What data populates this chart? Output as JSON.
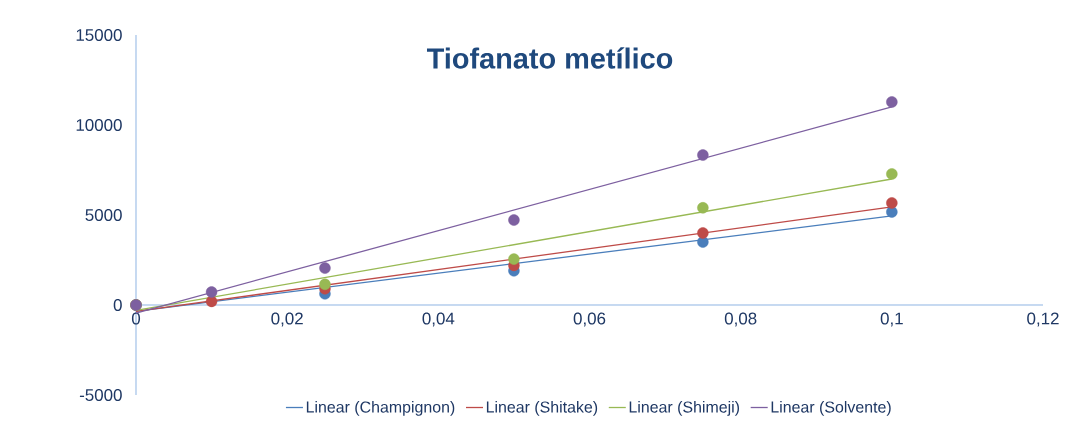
{
  "chart_data": {
    "type": "scatter",
    "title": "Tiofanato metílico",
    "xlim": [
      0,
      0.12
    ],
    "ylim": [
      -5000,
      15000
    ],
    "xticks": [
      0,
      {
        "value": 0.02,
        "label": "0,02"
      },
      {
        "value": 0.04,
        "label": "0,04"
      },
      {
        "value": 0.06,
        "label": "0,06"
      },
      {
        "value": 0.08,
        "label": "0,08"
      },
      {
        "value": 0.1,
        "label": "0,1"
      },
      {
        "value": 0.12,
        "label": "0,12"
      }
    ],
    "yticks": [
      -5000,
      0,
      5000,
      10000,
      15000
    ],
    "grid": false,
    "legend": "bottom",
    "series": [
      {
        "marker": "circle",
        "color": "#4a7ebb",
        "x": [
          0,
          0.01,
          0.025,
          0.05,
          0.075,
          0.1
        ],
        "values": [
          0,
          null,
          620,
          1900,
          3500,
          5170
        ]
      },
      {
        "marker": "circle",
        "color": "#be4b48",
        "x": [
          0,
          0.01,
          0.025,
          0.05,
          0.075,
          0.1
        ],
        "values": [
          0,
          200,
          900,
          2200,
          4000,
          5670
        ]
      },
      {
        "marker": "circle",
        "color": "#98b954",
        "x": [
          0,
          0.01,
          0.025,
          0.05,
          0.075,
          0.1
        ],
        "values": [
          0,
          null,
          1150,
          2550,
          5400,
          7280
        ]
      },
      {
        "marker": "circle",
        "color": "#7d60a0",
        "x": [
          0,
          0.01,
          0.025,
          0.05,
          0.075,
          0.1
        ],
        "values": [
          0,
          720,
          2050,
          4720,
          8330,
          11280
        ]
      },
      {
        "type": "line",
        "marker": "none",
        "name": "Linear (Champignon)",
        "color": "#4a7ebb",
        "x": [
          0,
          0.1
        ],
        "values": [
          -350,
          4950
        ]
      },
      {
        "type": "line",
        "marker": "none",
        "name": "Linear (Shitake)",
        "color": "#be4b48",
        "x": [
          0,
          0.1
        ],
        "values": [
          -350,
          5450
        ]
      },
      {
        "type": "line",
        "marker": "none",
        "name": "Linear (Shimeji)",
        "color": "#98b954",
        "x": [
          0,
          0.1
        ],
        "values": [
          -300,
          7000
        ]
      },
      {
        "type": "line",
        "marker": "none",
        "name": "Linear (Solvente)",
        "color": "#7d60a0",
        "x": [
          0,
          0.1
        ],
        "values": [
          -450,
          11000
        ]
      }
    ]
  }
}
